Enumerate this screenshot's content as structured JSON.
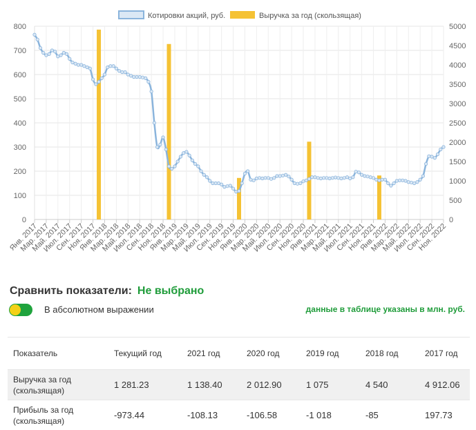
{
  "chart_data": {
    "type": "line+bar",
    "legend": [
      {
        "name": "Котировки акций, руб.",
        "color": "#8ab4dc"
      },
      {
        "name": "Выручка за год (скользящая)",
        "color": "#f5c234"
      }
    ],
    "legend_position": "top-center",
    "grid": true,
    "left_axis": {
      "min": 0,
      "max": 800,
      "ticks": [
        0,
        100,
        200,
        300,
        400,
        500,
        600,
        700,
        800
      ]
    },
    "right_axis": {
      "min": 0,
      "max": 5000,
      "ticks": [
        0,
        500,
        1000,
        1500,
        2000,
        2500,
        3000,
        3500,
        4000,
        4500,
        5000
      ]
    },
    "categories": [
      "Янв. 2017",
      "Мар. 2017",
      "Май. 2017",
      "Июл. 2017",
      "Сен. 2017",
      "Ноя. 2017",
      "Янв. 2018",
      "Мар. 2018",
      "Май. 2018",
      "Июл. 2018",
      "Сен. 2018",
      "Ноя. 2018",
      "Янв. 2019",
      "Мар. 2019",
      "Май. 2019",
      "Июл. 2019",
      "Сен. 2019",
      "Ноя. 2019",
      "Янв. 2020",
      "Мар. 2020",
      "Май. 2020",
      "Июл. 2020",
      "Сен. 2020",
      "Ноя. 2020",
      "Янв. 2021",
      "Мар. 2021",
      "Май. 2021",
      "Июл. 2021",
      "Сен. 2021",
      "Ноя. 2021",
      "Янв. 2022",
      "Мар. 2022",
      "Май. 2022",
      "Июл. 2022",
      "Сен. 2022",
      "Ноя. 2022"
    ],
    "line_series": {
      "name": "Котировки акций, руб.",
      "axis": "left",
      "points": [
        [
          0,
          765
        ],
        [
          0.25,
          745
        ],
        [
          0.5,
          710
        ],
        [
          0.75,
          690
        ],
        [
          1,
          680
        ],
        [
          1.25,
          685
        ],
        [
          1.5,
          700
        ],
        [
          1.75,
          695
        ],
        [
          2,
          675
        ],
        [
          2.25,
          680
        ],
        [
          2.5,
          690
        ],
        [
          2.75,
          685
        ],
        [
          3,
          665
        ],
        [
          3.25,
          650
        ],
        [
          3.5,
          645
        ],
        [
          3.75,
          640
        ],
        [
          4,
          640
        ],
        [
          4.25,
          635
        ],
        [
          4.5,
          630
        ],
        [
          4.75,
          625
        ],
        [
          5,
          580
        ],
        [
          5.25,
          560
        ],
        [
          5.5,
          570
        ],
        [
          5.75,
          585
        ],
        [
          6,
          600
        ],
        [
          6.25,
          630
        ],
        [
          6.5,
          635
        ],
        [
          6.75,
          635
        ],
        [
          7,
          625
        ],
        [
          7.25,
          615
        ],
        [
          7.5,
          610
        ],
        [
          7.75,
          610
        ],
        [
          8,
          600
        ],
        [
          8.25,
          595
        ],
        [
          8.5,
          590
        ],
        [
          8.75,
          590
        ],
        [
          9,
          590
        ],
        [
          9.25,
          588
        ],
        [
          9.5,
          585
        ],
        [
          9.75,
          570
        ],
        [
          10,
          530
        ],
        [
          10.25,
          400
        ],
        [
          10.5,
          300
        ],
        [
          10.75,
          310
        ],
        [
          11,
          340
        ],
        [
          11.25,
          290
        ],
        [
          11.5,
          220
        ],
        [
          11.75,
          210
        ],
        [
          12,
          220
        ],
        [
          12.25,
          240
        ],
        [
          12.5,
          260
        ],
        [
          12.75,
          275
        ],
        [
          13,
          280
        ],
        [
          13.25,
          265
        ],
        [
          13.5,
          245
        ],
        [
          13.75,
          230
        ],
        [
          14,
          220
        ],
        [
          14.25,
          200
        ],
        [
          14.5,
          185
        ],
        [
          14.75,
          175
        ],
        [
          15,
          160
        ],
        [
          15.25,
          150
        ],
        [
          15.5,
          150
        ],
        [
          15.75,
          150
        ],
        [
          16,
          145
        ],
        [
          16.25,
          135
        ],
        [
          16.5,
          138
        ],
        [
          16.75,
          140
        ],
        [
          17,
          128
        ],
        [
          17.25,
          115
        ],
        [
          17.5,
          118
        ],
        [
          17.75,
          150
        ],
        [
          18,
          190
        ],
        [
          18.25,
          200
        ],
        [
          18.5,
          165
        ],
        [
          18.75,
          162
        ],
        [
          19,
          170
        ],
        [
          19.25,
          172
        ],
        [
          19.5,
          170
        ],
        [
          19.75,
          172
        ],
        [
          20,
          172
        ],
        [
          20.25,
          168
        ],
        [
          20.5,
          172
        ],
        [
          20.75,
          180
        ],
        [
          21,
          180
        ],
        [
          21.25,
          182
        ],
        [
          21.5,
          185
        ],
        [
          21.75,
          178
        ],
        [
          22,
          165
        ],
        [
          22.25,
          150
        ],
        [
          22.5,
          148
        ],
        [
          22.75,
          150
        ],
        [
          23,
          158
        ],
        [
          23.25,
          162
        ],
        [
          23.5,
          168
        ],
        [
          23.75,
          175
        ],
        [
          24,
          175
        ],
        [
          24.25,
          172
        ],
        [
          24.5,
          170
        ],
        [
          24.75,
          172
        ],
        [
          25,
          172
        ],
        [
          25.25,
          170
        ],
        [
          25.5,
          172
        ],
        [
          25.75,
          174
        ],
        [
          26,
          172
        ],
        [
          26.25,
          170
        ],
        [
          26.5,
          172
        ],
        [
          26.75,
          175
        ],
        [
          27,
          170
        ],
        [
          27.25,
          175
        ],
        [
          27.5,
          198
        ],
        [
          27.75,
          195
        ],
        [
          28,
          185
        ],
        [
          28.25,
          180
        ],
        [
          28.5,
          178
        ],
        [
          28.75,
          175
        ],
        [
          29,
          172
        ],
        [
          29.25,
          165
        ],
        [
          29.5,
          162
        ],
        [
          29.75,
          165
        ],
        [
          30,
          165
        ],
        [
          30.25,
          150
        ],
        [
          30.5,
          140
        ],
        [
          30.75,
          150
        ],
        [
          31,
          160
        ],
        [
          31.25,
          162
        ],
        [
          31.5,
          162
        ],
        [
          31.75,
          160
        ],
        [
          32,
          155
        ],
        [
          32.25,
          153
        ],
        [
          32.5,
          150
        ],
        [
          32.75,
          155
        ],
        [
          33,
          165
        ],
        [
          33.25,
          180
        ],
        [
          33.5,
          230
        ],
        [
          33.75,
          262
        ],
        [
          34,
          260
        ],
        [
          34.25,
          255
        ],
        [
          34.5,
          270
        ],
        [
          34.75,
          290
        ],
        [
          35,
          300
        ]
      ]
    },
    "bar_series": {
      "name": "Выручка за год (скользящая)",
      "axis": "right",
      "bars": [
        {
          "category": "Ноя. 2017",
          "value": 4912.06
        },
        {
          "category": "Ноя. 2018",
          "value": 4540
        },
        {
          "category": "Ноя. 2019",
          "value": 1075
        },
        {
          "category": "Ноя. 2020",
          "value": 2012.9
        },
        {
          "category": "Ноя. 2021",
          "value": 1138.4
        }
      ]
    }
  },
  "compare": {
    "label": "Сравнить показатели:",
    "value": "Не выбрано"
  },
  "toggle_label": "В абсолютном выражении",
  "note": "данные в таблице указаны в млн. руб.",
  "table": {
    "headers": [
      "Показатель",
      "Текущий год",
      "2021 год",
      "2020 год",
      "2019 год",
      "2018 год",
      "2017 год"
    ],
    "rows": [
      {
        "label": "Выручка за год (скользящая)",
        "values": [
          "1 281.23",
          "1 138.40",
          "2 012.90",
          "1 075",
          "4 540",
          "4 912.06"
        ]
      },
      {
        "label": "Прибыль за год (скользящая)",
        "values": [
          "-973.44",
          "-108.13",
          "-106.58",
          "-1 018",
          "-85",
          "197.73"
        ]
      }
    ]
  }
}
